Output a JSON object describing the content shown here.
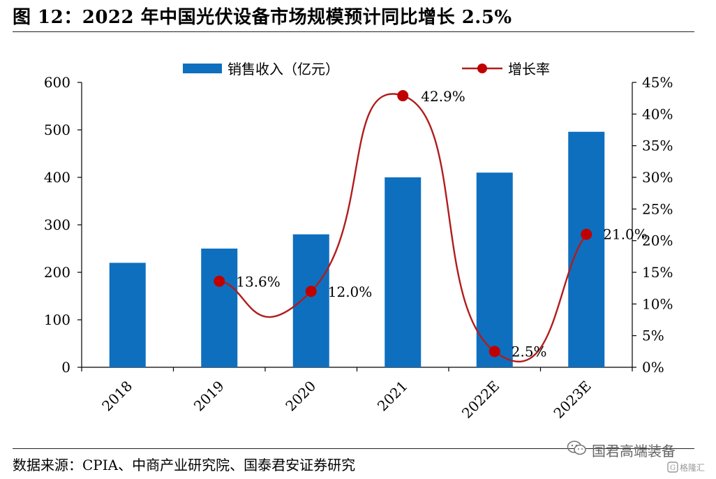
{
  "title": "图 12：2022 年中国光伏设备市场规模预计同比增长 2.5%",
  "source": "数据来源：CPIA、中商产业研究院、国泰君安证券研究",
  "watermark": {
    "text": "国君高端装备",
    "icon": "wechat-icon",
    "logo_text": "格隆汇"
  },
  "colors": {
    "bar": "#0e6fbf",
    "line": "#b11c1c",
    "marker": "#c00000",
    "axis": "#000000"
  },
  "chart_data": {
    "type": "bar",
    "categories": [
      "2018",
      "2019",
      "2020",
      "2021",
      "2022E",
      "2023E"
    ],
    "series": [
      {
        "name": "销售收入（亿元）",
        "type": "bar",
        "axis": "left",
        "values": [
          220,
          250,
          280,
          400,
          410,
          496
        ]
      },
      {
        "name": "增长率",
        "type": "line",
        "axis": "right",
        "values": [
          null,
          13.6,
          12.0,
          42.9,
          2.5,
          21.0
        ],
        "labels": [
          "",
          "13.6%",
          "12.0%",
          "42.9%",
          "2.5%",
          "21.0%"
        ]
      }
    ],
    "ylim": [
      0,
      600
    ],
    "y_ticks": [
      "0",
      "100",
      "200",
      "300",
      "400",
      "500",
      "600"
    ],
    "y2lim": [
      0,
      45
    ],
    "y2_ticks": [
      "0%",
      "5%",
      "10%",
      "15%",
      "20%",
      "25%",
      "30%",
      "35%",
      "40%",
      "45%"
    ],
    "legend_position": "top",
    "grid": false,
    "xlabel": "",
    "ylabel": ""
  }
}
